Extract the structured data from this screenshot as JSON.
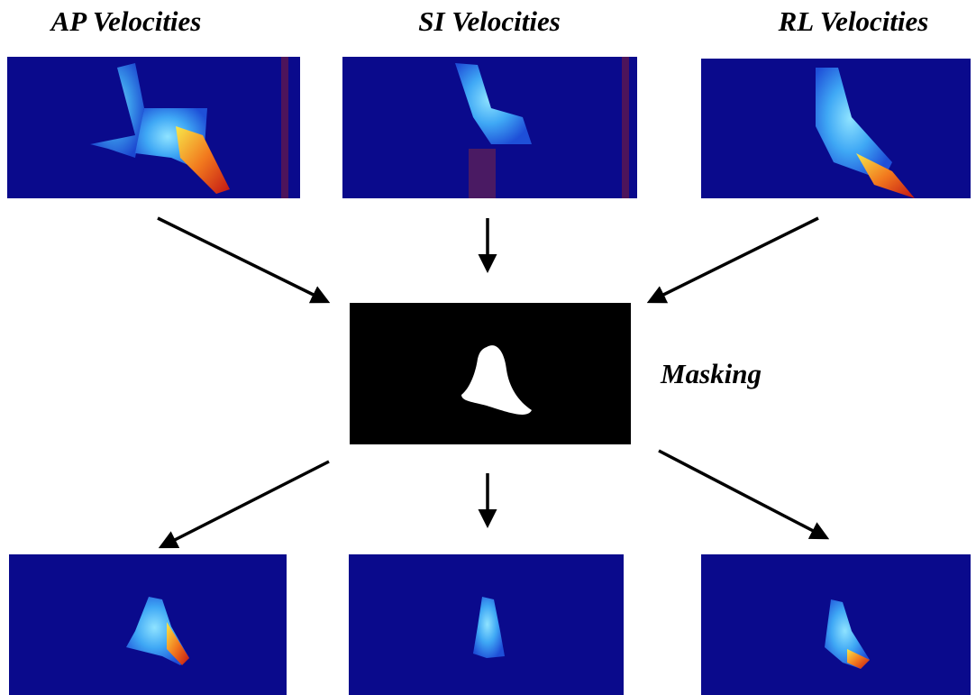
{
  "inputs": [
    {
      "label": "AP Velocities"
    },
    {
      "label": "SI Velocities"
    },
    {
      "label": "RL Velocities"
    }
  ],
  "mask": {
    "label": "Masking"
  }
}
